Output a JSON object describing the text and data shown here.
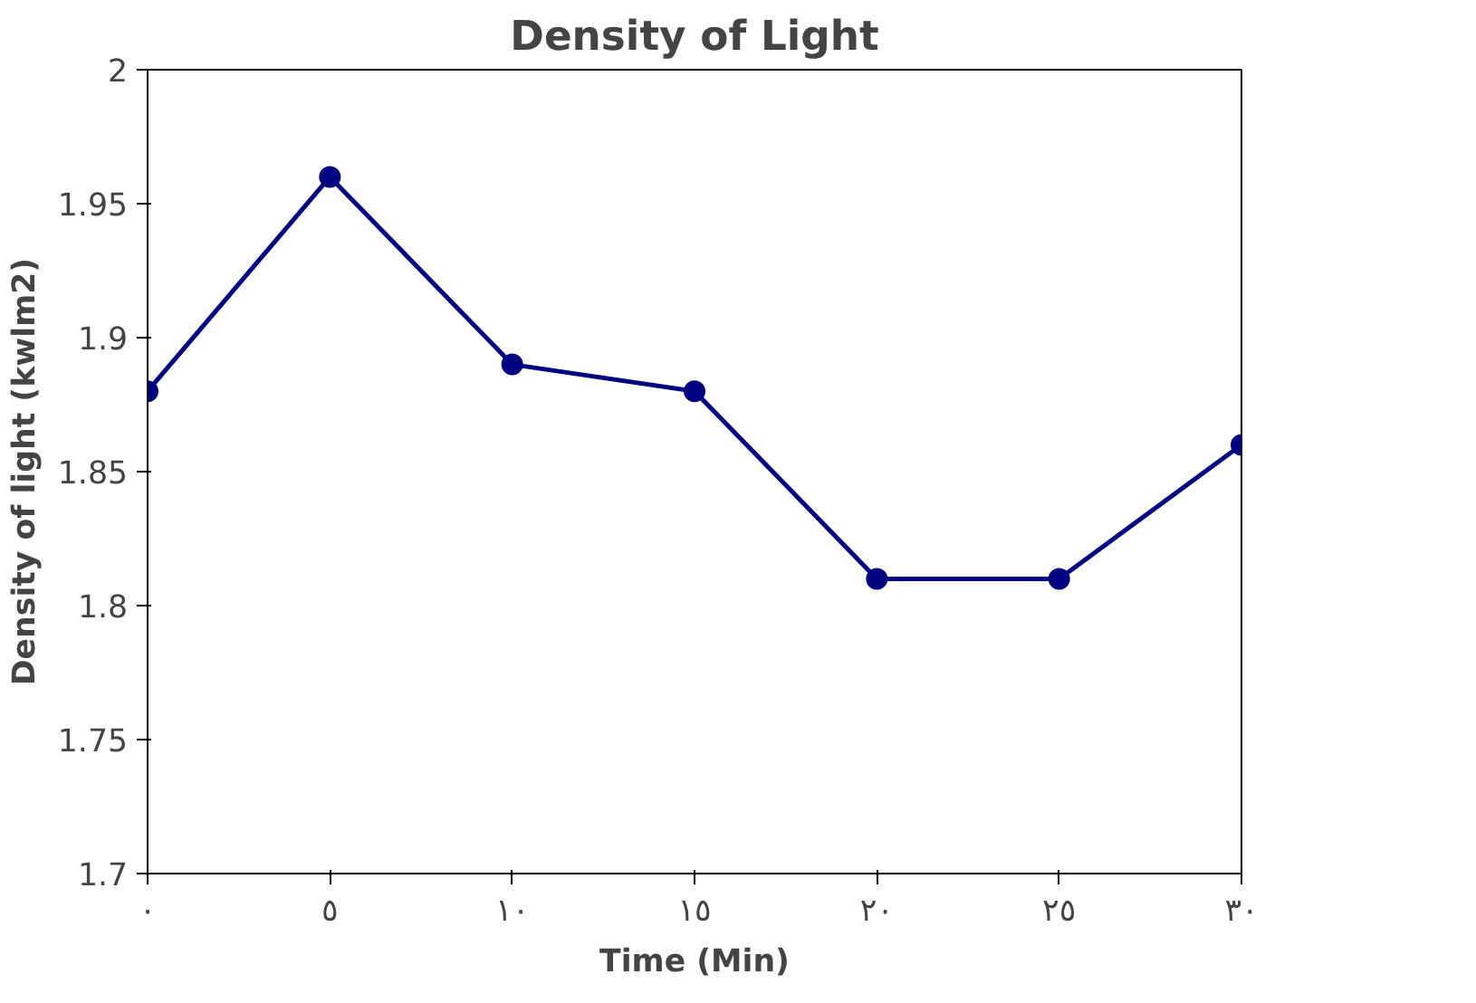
{
  "chart_data": {
    "type": "line",
    "title": "Density of Light",
    "xlabel": "Time (Min)",
    "ylabel": "Density of light (kwlm2)",
    "x": [
      0,
      5,
      10,
      15,
      20,
      25,
      30
    ],
    "series": [
      {
        "color": "#000080",
        "values": [
          1.88,
          1.96,
          1.89,
          1.88,
          1.81,
          1.81,
          1.86
        ]
      }
    ],
    "xlim": [
      0,
      30
    ],
    "xticks": [
      {
        "value": 0,
        "label": "٠"
      },
      {
        "value": 5,
        "label": "٥"
      },
      {
        "value": 10,
        "label": "١٠"
      },
      {
        "value": 15,
        "label": "١٥"
      },
      {
        "value": 20,
        "label": "٢٠"
      },
      {
        "value": 25,
        "label": "٢٥"
      },
      {
        "value": 30,
        "label": "٣٠"
      }
    ],
    "ylim": [
      1.7,
      2
    ],
    "yticks": [
      1.7,
      1.75,
      1.8,
      1.85,
      1.9,
      1.95,
      2
    ],
    "grid": false,
    "marker": "circle",
    "line_style": "solid"
  }
}
